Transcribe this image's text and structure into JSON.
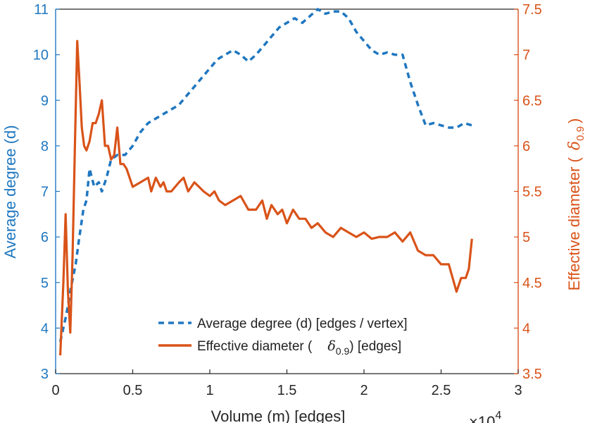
{
  "chart_data": {
    "type": "line",
    "x_axis": {
      "label": "Volume (m) [edges]",
      "range": [
        0,
        30000
      ],
      "ticks": [
        0,
        5000,
        10000,
        15000,
        20000,
        25000,
        30000
      ],
      "tick_labels": [
        "0",
        "0.5",
        "1",
        "1.5",
        "2",
        "2.5",
        "3"
      ],
      "exponent_base": "×10",
      "exponent_power": "4"
    },
    "y_left": {
      "label": "Average degree (d)",
      "range": [
        3,
        11
      ],
      "ticks": [
        3,
        4,
        5,
        6,
        7,
        8,
        9,
        10,
        11
      ],
      "tick_labels": [
        "3",
        "4",
        "5",
        "6",
        "7",
        "8",
        "9",
        "10",
        "11"
      ]
    },
    "y_right": {
      "label_prefix": "Effective diameter (",
      "label_symbol": "δ",
      "label_subscript": "0.9",
      "label_suffix": ")",
      "range": [
        3.5,
        7.5
      ],
      "ticks": [
        3.5,
        4,
        4.5,
        5,
        5.5,
        6,
        6.5,
        7,
        7.5
      ],
      "tick_labels": [
        "3.5",
        "4",
        "4.5",
        "5",
        "5.5",
        "6",
        "6.5",
        "7",
        "7.5"
      ]
    },
    "series": [
      {
        "name": "Average degree (d) [edges / vertex]",
        "axis": "left",
        "style": "dashed",
        "color": "#1f77c0",
        "points": [
          [
            300,
            3.7
          ],
          [
            700,
            4.3
          ],
          [
            1000,
            4.9
          ],
          [
            1300,
            5.4
          ],
          [
            1500,
            5.9
          ],
          [
            1800,
            6.6
          ],
          [
            2000,
            6.8
          ],
          [
            2200,
            7.5
          ],
          [
            2500,
            7.1
          ],
          [
            2800,
            7.2
          ],
          [
            3000,
            7.0
          ],
          [
            3300,
            7.3
          ],
          [
            3600,
            7.7
          ],
          [
            4000,
            7.8
          ],
          [
            4500,
            7.8
          ],
          [
            5000,
            8.0
          ],
          [
            5500,
            8.3
          ],
          [
            6000,
            8.5
          ],
          [
            6500,
            8.6
          ],
          [
            7000,
            8.7
          ],
          [
            7500,
            8.8
          ],
          [
            8000,
            8.9
          ],
          [
            8500,
            9.1
          ],
          [
            9000,
            9.3
          ],
          [
            9500,
            9.5
          ],
          [
            10000,
            9.7
          ],
          [
            10500,
            9.9
          ],
          [
            11000,
            10.0
          ],
          [
            11500,
            10.1
          ],
          [
            12000,
            10.0
          ],
          [
            12500,
            9.85
          ],
          [
            13000,
            10.0
          ],
          [
            13500,
            10.2
          ],
          [
            14000,
            10.4
          ],
          [
            14500,
            10.6
          ],
          [
            15000,
            10.7
          ],
          [
            15500,
            10.8
          ],
          [
            16000,
            10.7
          ],
          [
            16500,
            10.85
          ],
          [
            17000,
            11.0
          ],
          [
            17500,
            10.9
          ],
          [
            18000,
            10.95
          ],
          [
            18500,
            10.95
          ],
          [
            19000,
            10.8
          ],
          [
            19500,
            10.5
          ],
          [
            20000,
            10.3
          ],
          [
            20500,
            10.1
          ],
          [
            21000,
            10.0
          ],
          [
            21500,
            10.05
          ],
          [
            22000,
            10.0
          ],
          [
            22500,
            10.0
          ],
          [
            23000,
            9.4
          ],
          [
            23500,
            8.9
          ],
          [
            24000,
            8.45
          ],
          [
            24500,
            8.5
          ],
          [
            25000,
            8.45
          ],
          [
            25500,
            8.4
          ],
          [
            26000,
            8.4
          ],
          [
            26500,
            8.5
          ],
          [
            27000,
            8.45
          ]
        ]
      },
      {
        "name_prefix": "Effective diameter (",
        "name_symbol": "δ",
        "name_subscript": "0.9",
        "name_suffix": ") [edges]",
        "axis": "right",
        "style": "solid",
        "color": "#d95319",
        "points": [
          [
            300,
            3.7
          ],
          [
            500,
            4.5
          ],
          [
            650,
            5.25
          ],
          [
            800,
            4.4
          ],
          [
            950,
            3.95
          ],
          [
            1100,
            4.8
          ],
          [
            1250,
            6.0
          ],
          [
            1400,
            7.15
          ],
          [
            1550,
            6.7
          ],
          [
            1700,
            6.2
          ],
          [
            1850,
            6.0
          ],
          [
            2000,
            5.95
          ],
          [
            2200,
            6.05
          ],
          [
            2400,
            6.25
          ],
          [
            2600,
            6.25
          ],
          [
            2800,
            6.35
          ],
          [
            3000,
            6.5
          ],
          [
            3200,
            6.0
          ],
          [
            3400,
            6.0
          ],
          [
            3600,
            5.85
          ],
          [
            3800,
            5.9
          ],
          [
            4000,
            6.2
          ],
          [
            4200,
            5.8
          ],
          [
            4400,
            5.8
          ],
          [
            4600,
            5.75
          ],
          [
            5000,
            5.55
          ],
          [
            5500,
            5.6
          ],
          [
            6000,
            5.65
          ],
          [
            6200,
            5.5
          ],
          [
            6500,
            5.65
          ],
          [
            6800,
            5.55
          ],
          [
            7000,
            5.6
          ],
          [
            7200,
            5.5
          ],
          [
            7500,
            5.5
          ],
          [
            8000,
            5.6
          ],
          [
            8300,
            5.65
          ],
          [
            8600,
            5.5
          ],
          [
            9000,
            5.6
          ],
          [
            9300,
            5.55
          ],
          [
            9600,
            5.5
          ],
          [
            10000,
            5.45
          ],
          [
            10300,
            5.5
          ],
          [
            10600,
            5.4
          ],
          [
            11000,
            5.35
          ],
          [
            11500,
            5.4
          ],
          [
            12000,
            5.45
          ],
          [
            12500,
            5.3
          ],
          [
            13000,
            5.3
          ],
          [
            13400,
            5.4
          ],
          [
            13700,
            5.2
          ],
          [
            14000,
            5.35
          ],
          [
            14400,
            5.25
          ],
          [
            14700,
            5.3
          ],
          [
            15000,
            5.15
          ],
          [
            15400,
            5.3
          ],
          [
            15800,
            5.2
          ],
          [
            16200,
            5.2
          ],
          [
            16600,
            5.1
          ],
          [
            17000,
            5.15
          ],
          [
            17500,
            5.05
          ],
          [
            18000,
            5.0
          ],
          [
            18500,
            5.1
          ],
          [
            19000,
            5.05
          ],
          [
            19500,
            5.0
          ],
          [
            20000,
            5.05
          ],
          [
            20500,
            4.98
          ],
          [
            21000,
            5.0
          ],
          [
            21500,
            5.0
          ],
          [
            22000,
            5.05
          ],
          [
            22500,
            4.95
          ],
          [
            23000,
            5.05
          ],
          [
            23500,
            4.85
          ],
          [
            24000,
            4.8
          ],
          [
            24500,
            4.8
          ],
          [
            25000,
            4.7
          ],
          [
            25500,
            4.7
          ],
          [
            26000,
            4.4
          ],
          [
            26300,
            4.55
          ],
          [
            26600,
            4.55
          ],
          [
            26800,
            4.65
          ],
          [
            27000,
            4.98
          ]
        ]
      }
    ],
    "legend": {
      "placement": "bottom-right"
    }
  }
}
